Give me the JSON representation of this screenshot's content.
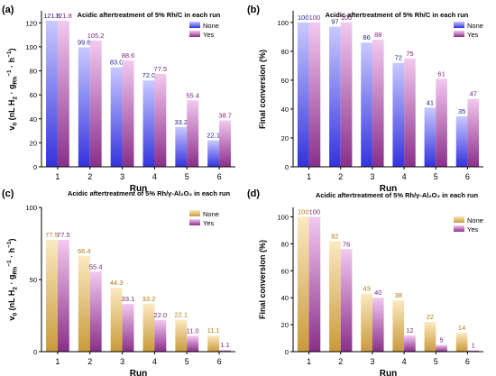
{
  "chart_data": [
    {
      "panel": "(a)",
      "type": "bar",
      "title": "Acidic aftertreatment of 5% Rh/C in each run",
      "xlabel": "Run",
      "ylabel_parts": [
        "v",
        "0",
        " (nL H",
        "2",
        " · g",
        "Rh",
        "−1",
        " · h",
        "−1",
        ")"
      ],
      "categories": [
        "1",
        "2",
        "3",
        "4",
        "5",
        "6"
      ],
      "ylim": [
        0,
        130
      ],
      "yticks": [
        0,
        20,
        40,
        60,
        80,
        100,
        120
      ],
      "series": [
        {
          "name": "None",
          "values": [
            121.8,
            99.6,
            83.0,
            72.0,
            33.2,
            22.1
          ],
          "labels": [
            "121.8",
            "99.6",
            "83.0",
            "72.0",
            "33.2",
            "22.1"
          ]
        },
        {
          "name": "Yes",
          "values": [
            121.8,
            105.2,
            88.6,
            77.5,
            55.4,
            38.7
          ],
          "labels": [
            "121.8",
            "105.2",
            "88.6",
            "77.5",
            "55.4",
            "38.7"
          ]
        }
      ]
    },
    {
      "panel": "(b)",
      "type": "bar",
      "title": "Acidic aftertreatment of 5% Rh/C in each run",
      "xlabel": "Run",
      "ylabel_parts": [
        "Final conversion (%)"
      ],
      "categories": [
        "1",
        "2",
        "3",
        "4",
        "5",
        "6"
      ],
      "ylim": [
        0,
        108
      ],
      "yticks": [
        0,
        20,
        40,
        60,
        80,
        100
      ],
      "series": [
        {
          "name": "None",
          "values": [
            100,
            97,
            86,
            72,
            41,
            35
          ],
          "labels": [
            "100",
            "97",
            "86",
            "72",
            "41",
            "35"
          ]
        },
        {
          "name": "Yes",
          "values": [
            100,
            100,
            88,
            75,
            61,
            47
          ],
          "labels": [
            "100",
            "100",
            "88",
            "75",
            "61",
            "47"
          ]
        }
      ]
    },
    {
      "panel": "(c)",
      "type": "bar",
      "title": "Acidic aftertreatment of 5% Rh/γ-Al₂O₃ in each run",
      "xlabel": "Run",
      "ylabel_parts": [
        "v",
        "0",
        " (nL H",
        "2",
        " · g",
        "Rh",
        "−1",
        " · h",
        "−1",
        ")"
      ],
      "categories": [
        "1",
        "2",
        "3",
        "4",
        "5",
        "6"
      ],
      "ylim": [
        0,
        100
      ],
      "yticks": [
        0,
        50,
        100
      ],
      "series": [
        {
          "name": "None",
          "values": [
            77.5,
            66.4,
            44.3,
            33.2,
            22.1,
            11.1
          ],
          "labels": [
            "77.5",
            "66.4",
            "44.3",
            "33.2",
            "22.1",
            "11.1"
          ]
        },
        {
          "name": "Yes",
          "values": [
            77.5,
            55.4,
            33.1,
            22.0,
            11.0,
            1.1
          ],
          "labels": [
            "77.5",
            "55.4",
            "33.1",
            "22.0",
            "11.0",
            "1.1"
          ]
        }
      ]
    },
    {
      "panel": "(d)",
      "type": "bar",
      "title": "Acidic aftertreatment of 5% Rh/γ-Al₂O₃ in each run",
      "xlabel": "Run",
      "ylabel_parts": [
        "Final conversion (%)"
      ],
      "categories": [
        "1",
        "2",
        "3",
        "4",
        "5",
        "6"
      ],
      "ylim": [
        0,
        107
      ],
      "yticks": [
        0,
        20,
        40,
        60,
        80,
        100
      ],
      "series": [
        {
          "name": "None",
          "values": [
            100,
            82,
            43,
            38,
            22,
            14
          ],
          "labels": [
            "100",
            "82",
            "43",
            "38",
            "22",
            "14"
          ]
        },
        {
          "name": "Yes",
          "values": [
            100,
            76,
            40,
            12,
            5,
            1
          ],
          "labels": [
            "100",
            "76",
            "40",
            "12",
            "5",
            "1"
          ]
        }
      ]
    }
  ],
  "colors": {
    "blue_top": "#c9c9ff",
    "blue_bottom": "#3333dd",
    "blue_label": "#222299",
    "purple_top": "#f3c9f0",
    "purple_bottom": "#8a2f8a",
    "purple_label": "#7a1f7a",
    "gold_top": "#fbe9c0",
    "gold_bottom": "#c99a3a",
    "gold_label": "#b07a10",
    "axis": "#000000"
  },
  "palette_by_panel": [
    [
      "blue",
      "purple"
    ],
    [
      "blue",
      "purple"
    ],
    [
      "gold",
      "purple"
    ],
    [
      "gold",
      "purple"
    ]
  ]
}
